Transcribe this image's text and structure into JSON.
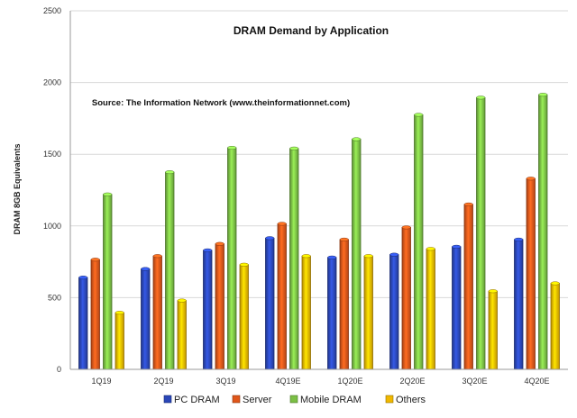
{
  "chart_data": {
    "type": "bar",
    "title": "DRAM Demand by Application",
    "annotation": "Source: The Information Network (www.theinformationnet.com)",
    "xlabel": "",
    "ylabel": "DRAM 8GB Equivalents",
    "ylim": [
      0,
      2500
    ],
    "yticks": [
      0,
      500,
      1000,
      1500,
      2000,
      2500
    ],
    "grid": true,
    "legend_position": "bottom",
    "categories": [
      "1Q19",
      "2Q19",
      "3Q19",
      "4Q19E",
      "1Q20E",
      "2Q20E",
      "3Q20E",
      "4Q20E"
    ],
    "series": [
      {
        "name": "PC DRAM",
        "color": "#2a47b8",
        "values": [
          640,
          700,
          830,
          915,
          780,
          800,
          855,
          905
        ]
      },
      {
        "name": "Server",
        "color": "#e0561a",
        "values": [
          765,
          790,
          875,
          1015,
          905,
          990,
          1150,
          1330
        ]
      },
      {
        "name": "Mobile DRAM",
        "color": "#7bbf45",
        "values": [
          1220,
          1375,
          1545,
          1540,
          1605,
          1775,
          1895,
          1915
        ]
      },
      {
        "name": "Others",
        "color": "#f0b800",
        "values": [
          395,
          480,
          730,
          790,
          790,
          840,
          545,
          600
        ]
      }
    ]
  }
}
